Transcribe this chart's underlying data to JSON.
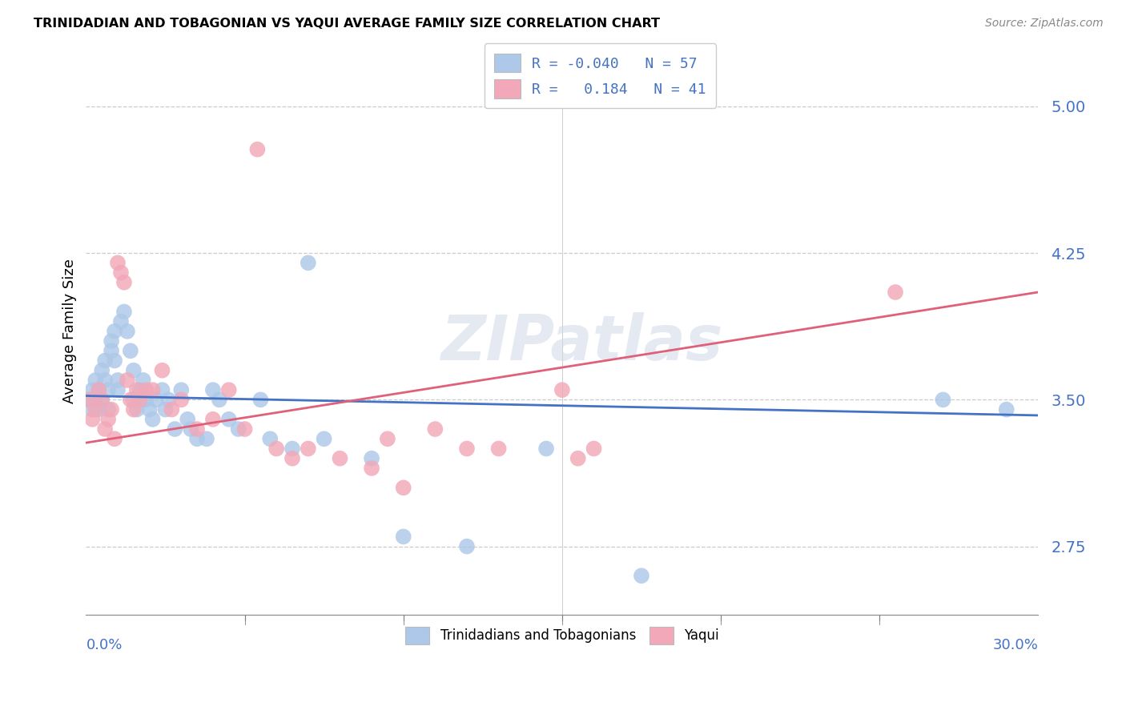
{
  "title": "TRINIDADIAN AND TOBAGONIAN VS YAQUI AVERAGE FAMILY SIZE CORRELATION CHART",
  "source": "Source: ZipAtlas.com",
  "ylabel": "Average Family Size",
  "yticks": [
    2.75,
    3.5,
    4.25,
    5.0
  ],
  "xlim": [
    0.0,
    0.3
  ],
  "ylim": [
    2.4,
    5.3
  ],
  "blue_R": "-0.040",
  "blue_N": "57",
  "pink_R": "0.184",
  "pink_N": "41",
  "blue_color": "#adc8e8",
  "pink_color": "#f2a8b8",
  "blue_line_color": "#4472c4",
  "pink_line_color": "#e0607a",
  "legend_blue_fill": "#adc8e8",
  "legend_pink_fill": "#f2a8b8",
  "watermark": "ZIPatlas",
  "blue_x": [
    0.001,
    0.002,
    0.002,
    0.003,
    0.003,
    0.004,
    0.004,
    0.005,
    0.005,
    0.006,
    0.006,
    0.007,
    0.007,
    0.008,
    0.008,
    0.009,
    0.009,
    0.01,
    0.01,
    0.011,
    0.012,
    0.013,
    0.014,
    0.015,
    0.015,
    0.016,
    0.017,
    0.018,
    0.019,
    0.02,
    0.021,
    0.022,
    0.024,
    0.025,
    0.026,
    0.028,
    0.03,
    0.032,
    0.033,
    0.035,
    0.038,
    0.04,
    0.042,
    0.045,
    0.048,
    0.055,
    0.058,
    0.065,
    0.07,
    0.075,
    0.09,
    0.1,
    0.12,
    0.145,
    0.175,
    0.27,
    0.29
  ],
  "blue_y": [
    3.5,
    3.55,
    3.45,
    3.6,
    3.5,
    3.55,
    3.45,
    3.65,
    3.5,
    3.7,
    3.6,
    3.55,
    3.45,
    3.8,
    3.75,
    3.85,
    3.7,
    3.6,
    3.55,
    3.9,
    3.95,
    3.85,
    3.75,
    3.65,
    3.5,
    3.45,
    3.55,
    3.6,
    3.5,
    3.45,
    3.4,
    3.5,
    3.55,
    3.45,
    3.5,
    3.35,
    3.55,
    3.4,
    3.35,
    3.3,
    3.3,
    3.55,
    3.5,
    3.4,
    3.35,
    3.5,
    3.3,
    3.25,
    4.2,
    3.3,
    3.2,
    2.8,
    2.75,
    3.25,
    2.6,
    3.5,
    3.45
  ],
  "pink_x": [
    0.001,
    0.002,
    0.003,
    0.004,
    0.005,
    0.006,
    0.007,
    0.008,
    0.009,
    0.01,
    0.011,
    0.012,
    0.013,
    0.014,
    0.015,
    0.016,
    0.017,
    0.019,
    0.021,
    0.024,
    0.027,
    0.03,
    0.035,
    0.04,
    0.045,
    0.05,
    0.054,
    0.06,
    0.065,
    0.07,
    0.08,
    0.09,
    0.095,
    0.1,
    0.11,
    0.12,
    0.13,
    0.15,
    0.155,
    0.16,
    0.255
  ],
  "pink_y": [
    3.5,
    3.4,
    3.45,
    3.55,
    3.5,
    3.35,
    3.4,
    3.45,
    3.3,
    4.2,
    4.15,
    4.1,
    3.6,
    3.5,
    3.45,
    3.55,
    3.5,
    3.55,
    3.55,
    3.65,
    3.45,
    3.5,
    3.35,
    3.4,
    3.55,
    3.35,
    4.78,
    3.25,
    3.2,
    3.25,
    3.2,
    3.15,
    3.3,
    3.05,
    3.35,
    3.25,
    3.25,
    3.55,
    3.2,
    3.25,
    4.05
  ]
}
